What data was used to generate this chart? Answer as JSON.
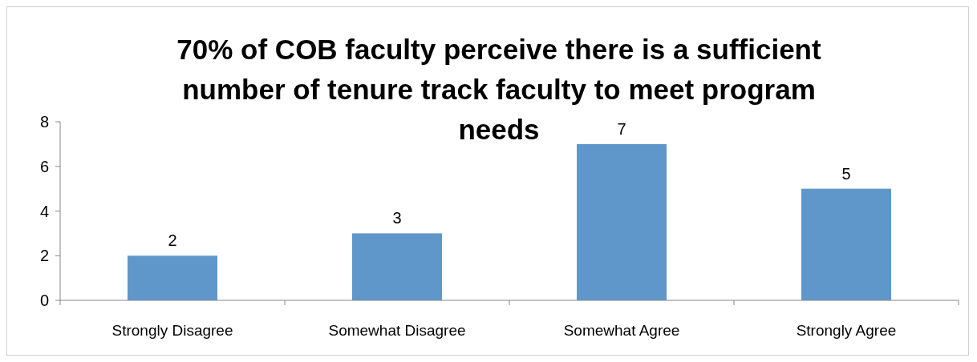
{
  "chart_data": {
    "type": "bar",
    "title": "70% of COB faculty perceive there is a sufficient number of tenure track faculty to meet program needs",
    "categories": [
      "Strongly Disagree",
      "Somewhat Disagree",
      "Somewhat Agree",
      "Strongly Agree"
    ],
    "values": [
      2,
      3,
      7,
      5
    ],
    "color": "#6097cb",
    "ylim": [
      0,
      8
    ],
    "yticks": [
      0,
      2,
      4,
      6,
      8
    ],
    "data_labels": true
  }
}
